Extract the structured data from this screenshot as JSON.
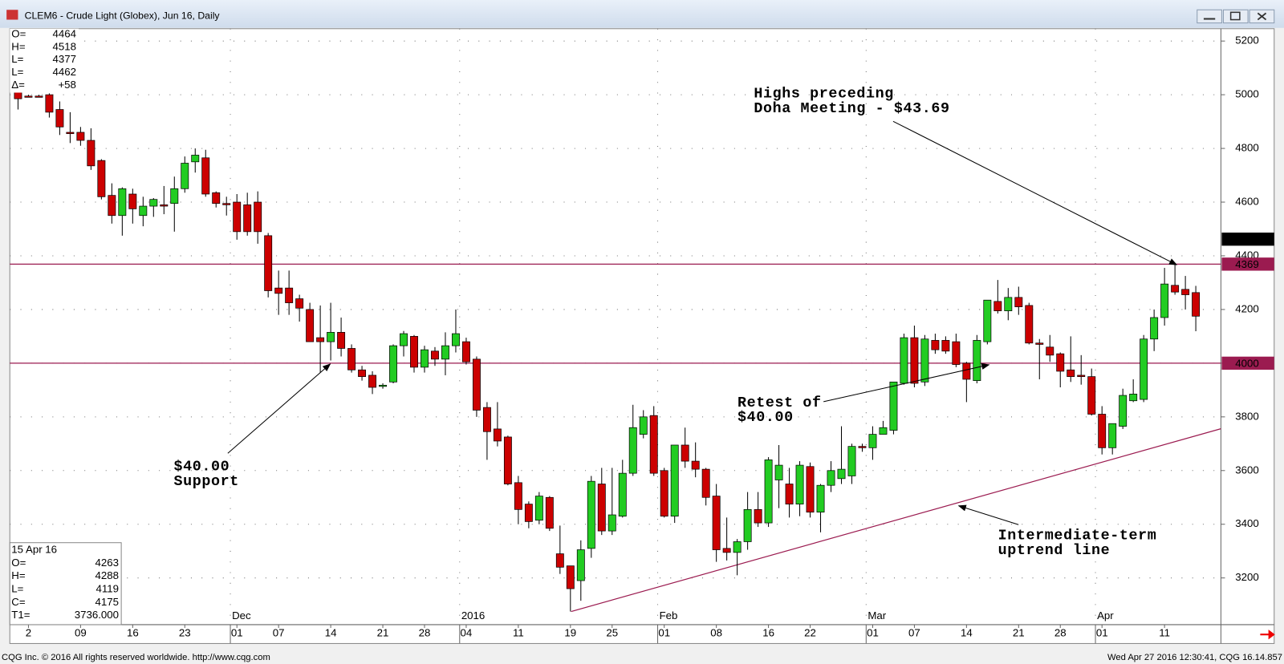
{
  "window": {
    "title": "CLEM6 - Crude Light (Globex), Jun 16, Daily",
    "footer_left": "CQG Inc. © 2016 All rights reserved worldwide. http://www.cqg.com",
    "footer_right": "Wed Apr 27 2016 12:30:41, CQG 16.14.857"
  },
  "chart_data": {
    "type": "candlestick",
    "categories": [
      null,
      "2",
      null,
      null,
      null,
      null,
      "09",
      null,
      null,
      null,
      null,
      "16",
      null,
      null,
      null,
      null,
      "23",
      null,
      null,
      null,
      null,
      "01",
      null,
      null,
      null,
      "07",
      null,
      null,
      null,
      null,
      "14",
      null,
      null,
      null,
      null,
      "21",
      null,
      null,
      null,
      "28",
      null,
      null,
      null,
      "04",
      null,
      null,
      null,
      null,
      "11",
      null,
      null,
      null,
      null,
      "19",
      null,
      null,
      null,
      "25",
      null,
      null,
      null,
      null,
      "01",
      null,
      null,
      null,
      null,
      "08",
      null,
      null,
      null,
      null,
      "16",
      null,
      null,
      null,
      "22",
      null,
      null,
      null,
      null,
      null,
      "01",
      null,
      null,
      null,
      "07",
      null,
      null,
      null,
      null,
      "14",
      null,
      null,
      null,
      null,
      "21",
      null,
      null,
      null,
      "28",
      null,
      null,
      null,
      "01",
      null,
      null,
      null,
      null,
      null,
      "11",
      null,
      null,
      null
    ],
    "months": [
      null,
      null,
      null,
      null,
      null,
      null,
      null,
      null,
      null,
      null,
      null,
      null,
      null,
      null,
      null,
      null,
      null,
      null,
      null,
      null,
      null,
      "Dec",
      null,
      null,
      null,
      null,
      null,
      null,
      null,
      null,
      null,
      null,
      null,
      null,
      null,
      null,
      null,
      null,
      null,
      null,
      null,
      null,
      null,
      "2016",
      null,
      null,
      null,
      null,
      null,
      null,
      null,
      null,
      null,
      null,
      null,
      null,
      null,
      null,
      null,
      null,
      null,
      null,
      "Feb",
      null,
      null,
      null,
      null,
      null,
      null,
      null,
      null,
      null,
      null,
      null,
      null,
      null,
      null,
      null,
      null,
      null,
      null,
      null,
      "Mar",
      null,
      null,
      null,
      null,
      null,
      null,
      null,
      null,
      null,
      null,
      null,
      null,
      null,
      null,
      null,
      null,
      null,
      null,
      null,
      null,
      null,
      "Apr",
      null,
      null,
      null,
      null,
      null,
      null,
      null,
      null,
      null
    ],
    "open": [
      5010,
      4995,
      4995,
      5000,
      4945,
      4860,
      4860,
      4830,
      4755,
      4625,
      4550,
      4630,
      4550,
      4585,
      4590,
      4595,
      4650,
      4750,
      4765,
      4635,
      4595,
      4600,
      4590,
      4600,
      4475,
      4280,
      4280,
      4240,
      4200,
      4095,
      4080,
      4115,
      4055,
      3975,
      3955,
      3915,
      3930,
      4065,
      4100,
      3985,
      4045,
      4015,
      4065,
      4080,
      4015,
      3835,
      3755,
      3725,
      3555,
      3475,
      3415,
      3500,
      3290,
      3245,
      3190,
      3310,
      3550,
      3375,
      3430,
      3590,
      3735,
      3805,
      3600,
      3430,
      3695,
      3635,
      3605,
      3505,
      3310,
      3295,
      3335,
      3455,
      3405,
      3565,
      3550,
      3475,
      3615,
      3445,
      3545,
      3570,
      3580,
      3690,
      3685,
      3735,
      3750,
      3925,
      4095,
      3930,
      4085,
      4085,
      4080,
      4000,
      3935,
      4080,
      4230,
      4195,
      4245,
      4215,
      4075,
      4060,
      4035,
      3975,
      3955,
      3950,
      3810,
      3685,
      3765,
      3860,
      3865,
      4090,
      4170,
      4290,
      4275,
      4263
    ],
    "high": [
      5015,
      5000,
      5000,
      5005,
      4975,
      4935,
      4880,
      4875,
      4760,
      4670,
      4655,
      4650,
      4620,
      4615,
      4660,
      4695,
      4770,
      4800,
      4795,
      4640,
      4620,
      4630,
      4635,
      4640,
      4485,
      4345,
      4345,
      4255,
      4225,
      4215,
      4225,
      4170,
      4070,
      3990,
      3970,
      3925,
      4070,
      4120,
      4105,
      4065,
      4060,
      4115,
      4200,
      4095,
      4025,
      3855,
      3855,
      3730,
      3580,
      3485,
      3520,
      3505,
      3395,
      3245,
      3340,
      3580,
      3610,
      3610,
      3640,
      3845,
      3825,
      3840,
      3610,
      3695,
      3760,
      3705,
      3610,
      3550,
      3425,
      3345,
      3520,
      3520,
      3650,
      3695,
      3610,
      3635,
      3630,
      3550,
      3635,
      3765,
      3700,
      3700,
      3765,
      3785,
      3930,
      4110,
      4140,
      4105,
      4110,
      4100,
      4110,
      4005,
      4105,
      4235,
      4310,
      4280,
      4285,
      4225,
      4090,
      4105,
      4040,
      4100,
      4030,
      3980,
      3840,
      3775,
      3905,
      3940,
      4105,
      4200,
      4355,
      4369,
      4325,
      4288
    ],
    "low": [
      4945,
      4990,
      4990,
      4915,
      4850,
      4820,
      4810,
      4720,
      4610,
      4520,
      4475,
      4520,
      4510,
      4545,
      4555,
      4490,
      4635,
      4710,
      4620,
      4580,
      4550,
      4460,
      4475,
      4445,
      4245,
      4180,
      4180,
      4155,
      4080,
      3965,
      4010,
      4025,
      3965,
      3935,
      3885,
      3905,
      3925,
      4025,
      3965,
      3965,
      3990,
      3955,
      4040,
      3995,
      3800,
      3640,
      3690,
      3545,
      3400,
      3385,
      3400,
      3375,
      3215,
      3075,
      3115,
      3275,
      3360,
      3360,
      3425,
      3580,
      3720,
      3580,
      3425,
      3405,
      3610,
      3575,
      3470,
      3260,
      3265,
      3210,
      3305,
      3390,
      3390,
      3460,
      3425,
      3430,
      3425,
      3370,
      3520,
      3550,
      3550,
      3670,
      3640,
      3735,
      3735,
      3920,
      3910,
      3915,
      4035,
      4035,
      3985,
      3855,
      3925,
      4070,
      4185,
      4160,
      4180,
      4070,
      3940,
      4005,
      3910,
      3930,
      3920,
      3805,
      3660,
      3660,
      3755,
      3855,
      3855,
      4045,
      4140,
      4255,
      4200,
      4119
    ],
    "close": [
      4985,
      4993,
      4993,
      4935,
      4880,
      4855,
      4830,
      4735,
      4620,
      4550,
      4650,
      4575,
      4585,
      4610,
      4585,
      4650,
      4745,
      4775,
      4630,
      4595,
      4590,
      4490,
      4490,
      4490,
      4270,
      4260,
      4225,
      4205,
      4080,
      4080,
      4115,
      4055,
      3975,
      3950,
      3910,
      3918,
      4065,
      4110,
      3985,
      4050,
      4015,
      4065,
      4110,
      4005,
      3825,
      3745,
      3710,
      3550,
      3455,
      3410,
      3505,
      3385,
      3240,
      3160,
      3305,
      3560,
      3375,
      3435,
      3590,
      3760,
      3800,
      3590,
      3430,
      3695,
      3635,
      3605,
      3500,
      3305,
      3295,
      3335,
      3455,
      3405,
      3640,
      3620,
      3475,
      3620,
      3445,
      3545,
      3600,
      3605,
      3690,
      3685,
      3735,
      3760,
      3930,
      4095,
      3925,
      4090,
      4050,
      4045,
      3995,
      3940,
      4085,
      4235,
      4195,
      4245,
      4210,
      4075,
      4070,
      4030,
      3970,
      3950,
      3950,
      3810,
      3685,
      3775,
      3880,
      3885,
      4090,
      4170,
      4295,
      4265,
      4255,
      4175
    ],
    "up_color": "#22cc22",
    "down_color": "#cc0000",
    "ylim": [
      3026,
      5246
    ],
    "yticks": [
      3200,
      3400,
      3600,
      3800,
      4000,
      4200,
      4400,
      4600,
      4800,
      5000,
      5200
    ],
    "grid": true,
    "hlines": [
      4369,
      4000
    ],
    "hline_color": "#9b1b50",
    "last_price": 4462,
    "annotations": [
      [
        "Highs preceding",
        "Doha Meeting - $43.69"
      ],
      [
        "Retest of",
        "$40.00"
      ],
      [
        "$40.00",
        "Support"
      ],
      [
        "Intermediate-term",
        "uptrend line"
      ]
    ],
    "info_top": {
      "labels": [
        "O=",
        "H=",
        "L=",
        "L=",
        "Δ="
      ],
      "values": [
        4464,
        4518,
        4377,
        4462,
        "+58"
      ]
    },
    "info_bottom": {
      "date": "15 Apr 16",
      "labels": [
        "O=",
        "H=",
        "L=",
        "C=",
        "T1="
      ],
      "values": [
        4263,
        4288,
        4119,
        4175,
        "3736.000"
      ]
    }
  }
}
